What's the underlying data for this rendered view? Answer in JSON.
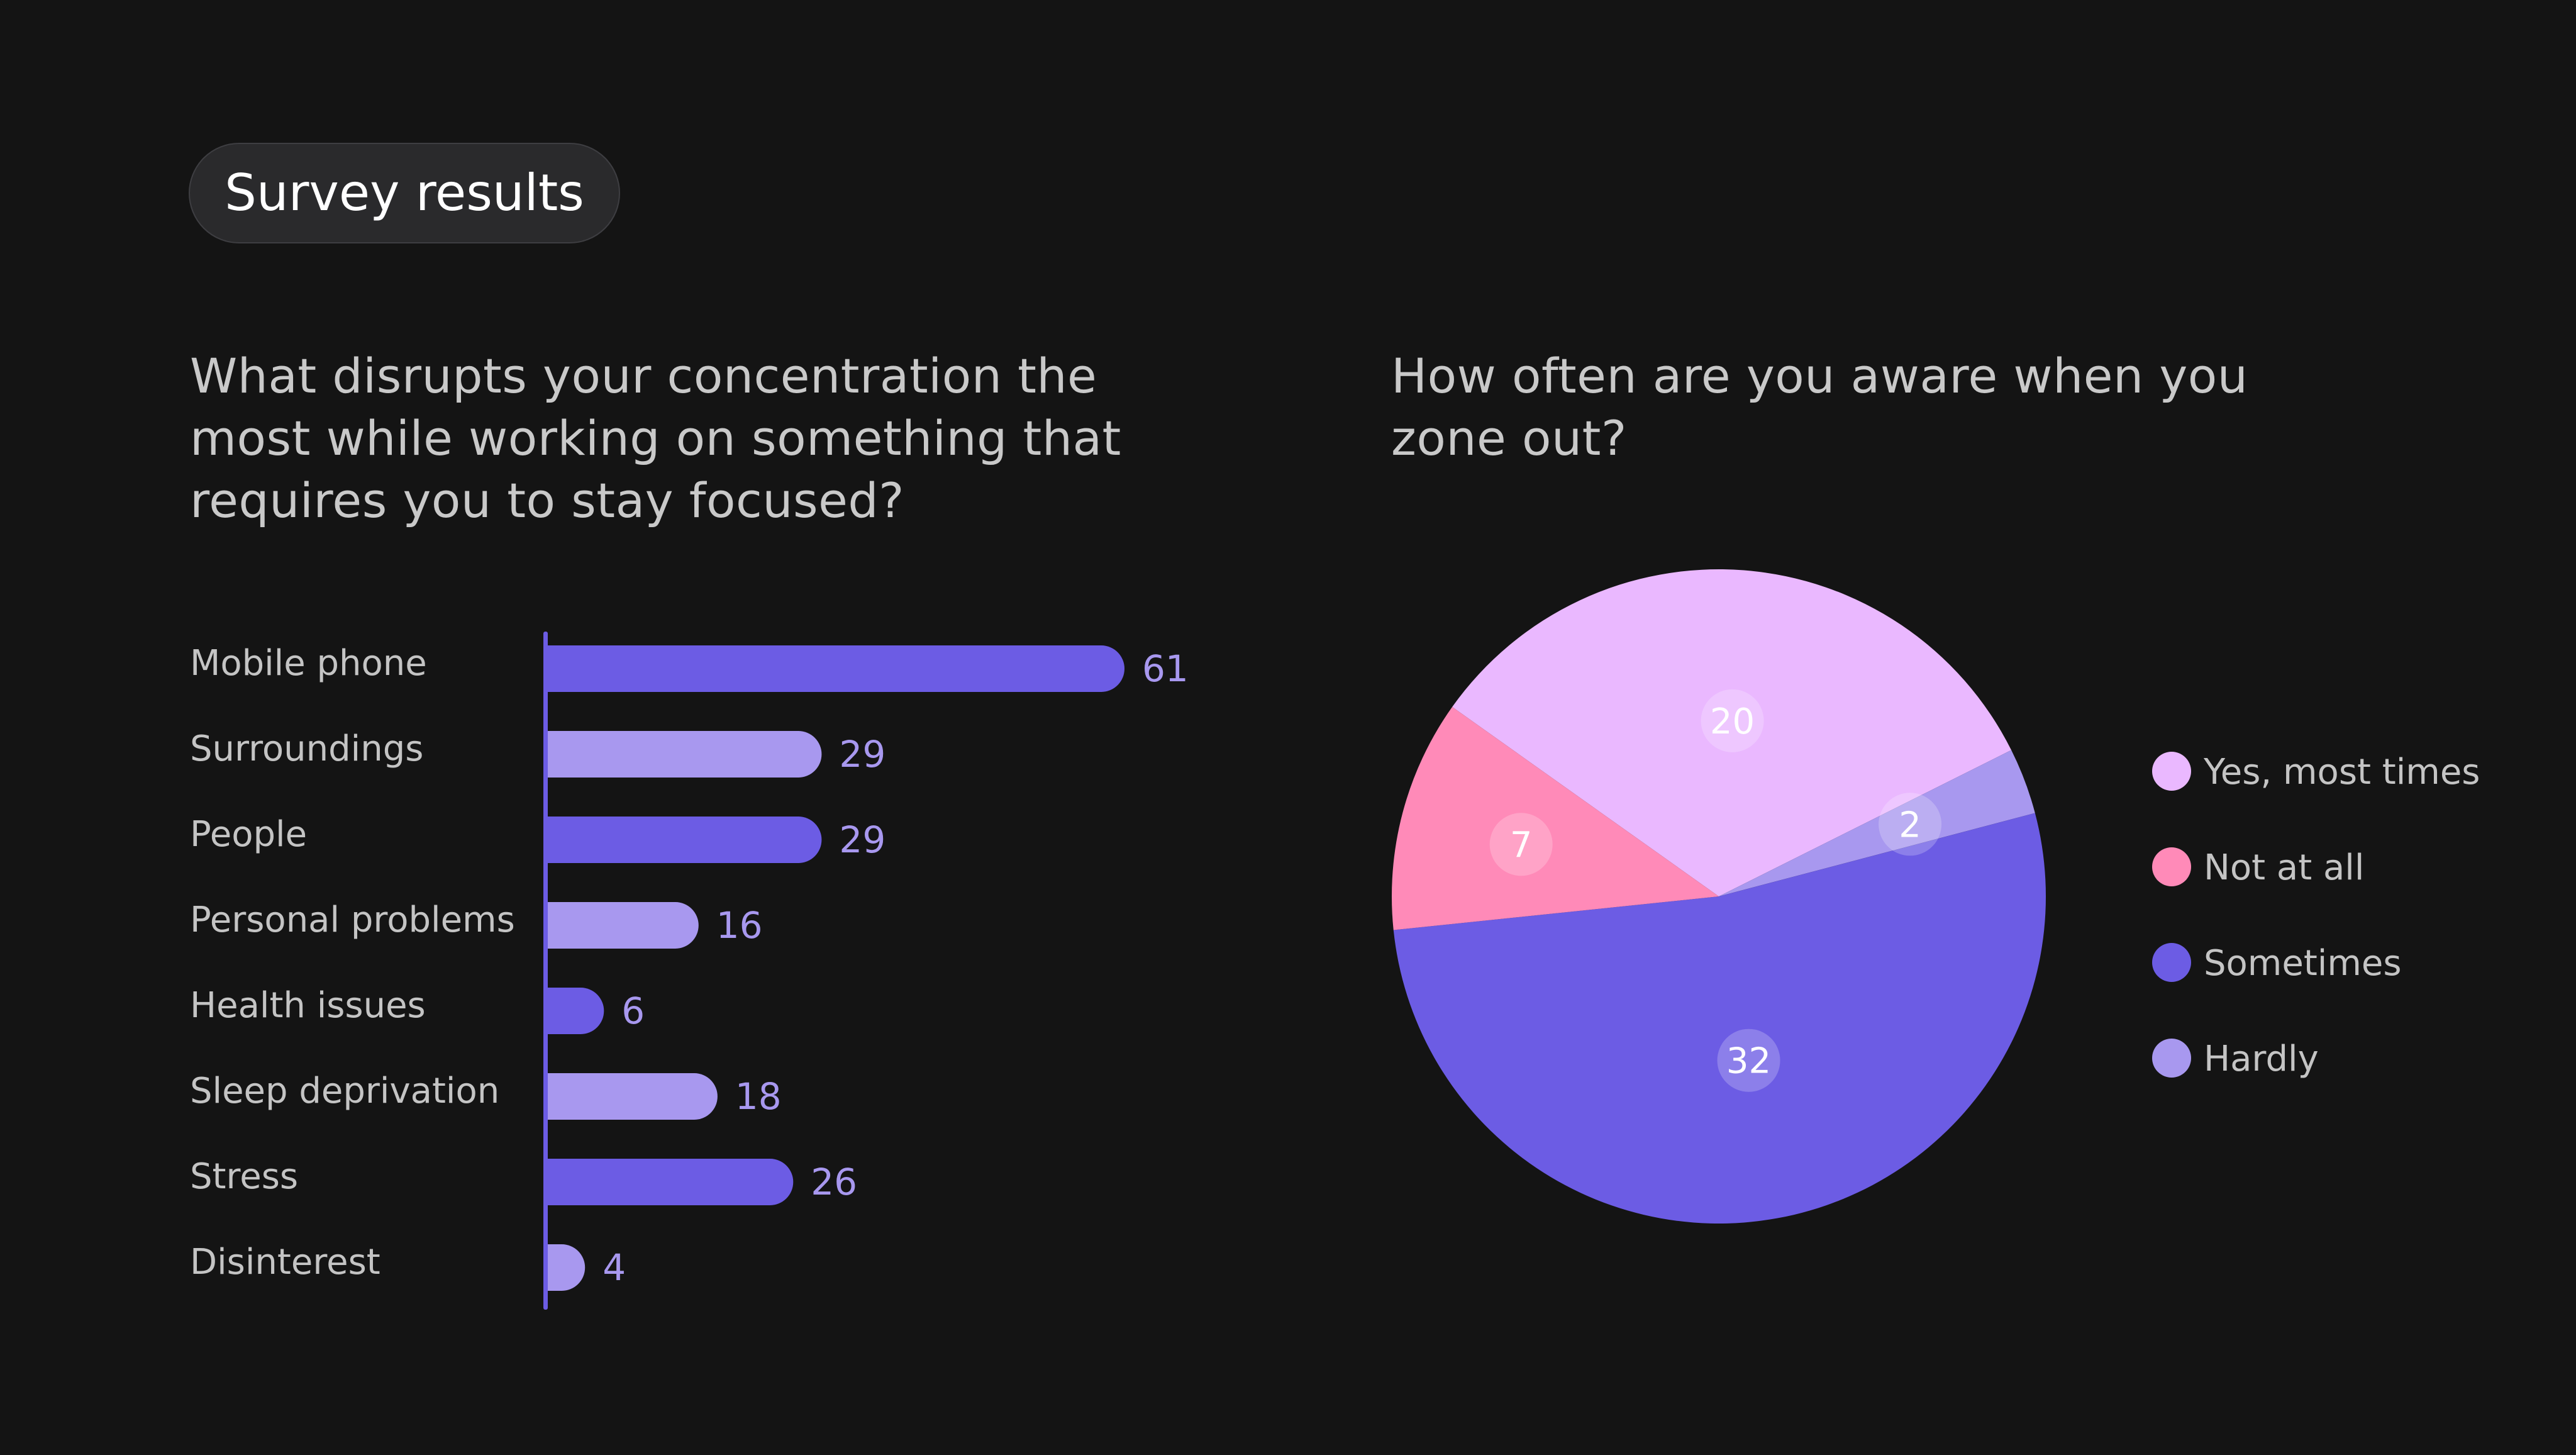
{
  "header": {
    "badge_label": "Survey results"
  },
  "colors": {
    "background": "#141414",
    "bar_dark": "#6c5ce4",
    "bar_light": "#a898ef",
    "value_label": "#a898ef",
    "category_label": "#c4c4c4",
    "slice_label_bg": "rgba(255,255,255,0.22)"
  },
  "chart_data": [
    {
      "type": "bar",
      "orientation": "horizontal",
      "title": "What disrupts your concentration the most while working on something that requires you to stay focused?",
      "categories": [
        "Mobile phone",
        "Surroundings",
        "People",
        "Personal problems",
        "Health issues",
        "Sleep deprivation",
        "Stress",
        "Disinterest"
      ],
      "values": [
        61,
        29,
        29,
        16,
        6,
        18,
        26,
        4
      ],
      "bar_colors": [
        "#6c5ce4",
        "#a898ef",
        "#6c5ce4",
        "#a898ef",
        "#6c5ce4",
        "#a898ef",
        "#6c5ce4",
        "#a898ef"
      ],
      "xlim": [
        0,
        61
      ],
      "data_labels": true,
      "grid": false
    },
    {
      "type": "pie",
      "title": "How often are you aware when you zone out?",
      "slices": [
        {
          "label": "Yes, most times",
          "value": 20,
          "color": "#eab8ff"
        },
        {
          "label": "Hardly",
          "value": 2,
          "color": "#a898ef"
        },
        {
          "label": "Sometimes",
          "value": 32,
          "color": "#6c5ce4"
        },
        {
          "label": "Not at all",
          "value": 7,
          "color": "#ff8ab8"
        }
      ],
      "legend": {
        "placement": "right",
        "order": [
          "Yes, most times",
          "Not at all",
          "Sometimes",
          "Hardly"
        ]
      },
      "data_labels": true
    }
  ]
}
